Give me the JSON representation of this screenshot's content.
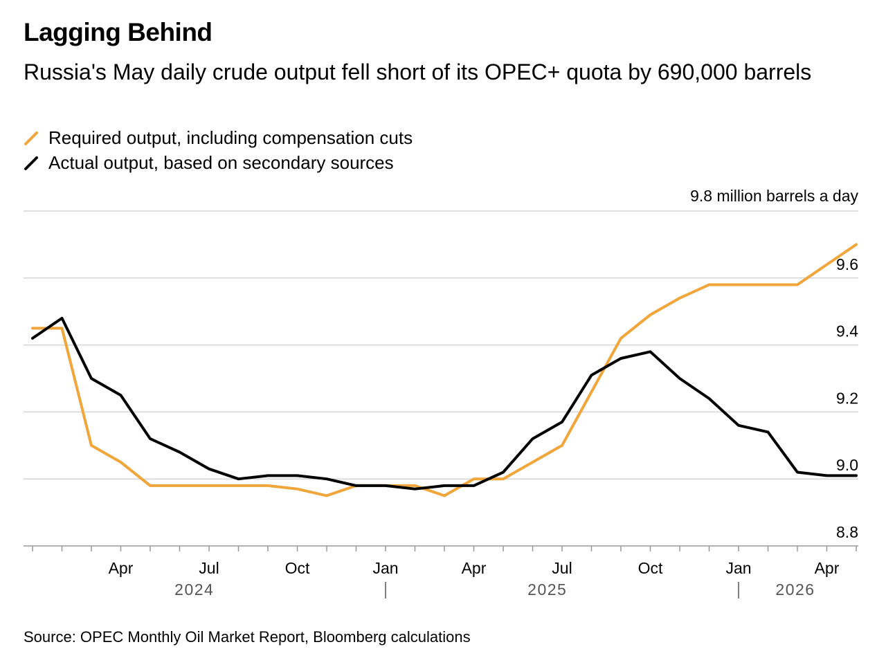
{
  "title": "Lagging Behind",
  "subtitle": "Russia's May daily crude output fell short of its OPEC+ quota by 690,000 barrels",
  "source": "Source: OPEC Monthly Oil Market Report, Bloomberg calculations",
  "colors": {
    "required": "#f0a63a",
    "actual": "#000000",
    "grid": "#d4d4d4",
    "axis": "#999999"
  },
  "chart_data": {
    "type": "line",
    "x": [
      "2024-01",
      "2024-02",
      "2024-03",
      "2024-04",
      "2024-05",
      "2024-06",
      "2024-07",
      "2024-08",
      "2024-09",
      "2024-10",
      "2024-11",
      "2024-12",
      "2025-01",
      "2025-02",
      "2025-03",
      "2025-04",
      "2025-05",
      "2025-06",
      "2025-07",
      "2025-08",
      "2025-09",
      "2025-10",
      "2025-11",
      "2025-12",
      "2026-01",
      "2026-02",
      "2026-03",
      "2026-04",
      "2026-05"
    ],
    "series": [
      {
        "name": "Required output, including compensation cuts",
        "color": "#f0a63a",
        "values": [
          9.45,
          9.45,
          9.1,
          9.05,
          8.98,
          8.98,
          8.98,
          8.98,
          8.98,
          8.97,
          8.95,
          8.98,
          8.98,
          8.98,
          8.95,
          9.0,
          9.0,
          9.05,
          9.1,
          9.26,
          9.42,
          9.49,
          9.54,
          9.58,
          9.58,
          9.58,
          9.58,
          9.64,
          9.7
        ]
      },
      {
        "name": "Actual output, based on secondary sources",
        "color": "#000000",
        "values": [
          9.42,
          9.48,
          9.3,
          9.25,
          9.12,
          9.08,
          9.03,
          9.0,
          9.01,
          9.01,
          9.0,
          8.98,
          8.98,
          8.97,
          8.98,
          8.98,
          9.02,
          9.12,
          9.17,
          9.31,
          9.36,
          9.38,
          9.3,
          9.24,
          9.16,
          9.14,
          9.02,
          9.01,
          9.01
        ]
      }
    ],
    "ylim": [
      8.8,
      9.8
    ],
    "yticks": [
      8.8,
      9.0,
      9.2,
      9.4,
      9.6
    ],
    "top_label": "9.8 million barrels a day",
    "month_ticks": [
      {
        "index": 3,
        "label": "Apr"
      },
      {
        "index": 6,
        "label": "Jul"
      },
      {
        "index": 9,
        "label": "Oct"
      },
      {
        "index": 12,
        "label": "Jan"
      },
      {
        "index": 15,
        "label": "Apr"
      },
      {
        "index": 18,
        "label": "Jul"
      },
      {
        "index": 21,
        "label": "Oct"
      },
      {
        "index": 24,
        "label": "Jan"
      },
      {
        "index": 27,
        "label": "Apr"
      }
    ],
    "year_labels": [
      "2024",
      "2025",
      "2026"
    ],
    "grid": true,
    "legend": "top-left"
  }
}
